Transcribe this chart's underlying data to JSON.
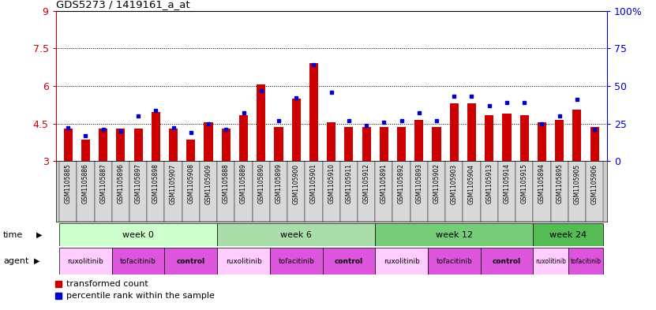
{
  "title": "GDS5273 / 1419161_a_at",
  "samples": [
    "GSM1105885",
    "GSM1105886",
    "GSM1105887",
    "GSM1105896",
    "GSM1105897",
    "GSM1105898",
    "GSM1105907",
    "GSM1105908",
    "GSM1105909",
    "GSM1105888",
    "GSM1105889",
    "GSM1105890",
    "GSM1105899",
    "GSM1105900",
    "GSM1105901",
    "GSM1105910",
    "GSM1105911",
    "GSM1105912",
    "GSM1105891",
    "GSM1105892",
    "GSM1105893",
    "GSM1105902",
    "GSM1105903",
    "GSM1105904",
    "GSM1105913",
    "GSM1105914",
    "GSM1105915",
    "GSM1105894",
    "GSM1105895",
    "GSM1105905",
    "GSM1105906"
  ],
  "red_values": [
    4.3,
    3.85,
    4.3,
    4.3,
    4.3,
    4.95,
    4.3,
    3.85,
    4.55,
    4.3,
    4.85,
    6.05,
    4.35,
    5.5,
    6.9,
    4.55,
    4.35,
    4.35,
    4.35,
    4.35,
    4.65,
    4.35,
    5.3,
    5.3,
    4.85,
    4.9,
    4.85,
    4.55,
    4.65,
    5.05,
    4.35
  ],
  "blue_values": [
    22,
    17,
    21,
    20,
    30,
    34,
    22,
    19,
    25,
    21,
    32,
    47,
    27,
    42,
    64,
    46,
    27,
    24,
    26,
    27,
    32,
    27,
    43,
    43,
    37,
    39,
    39,
    25,
    30,
    41,
    21
  ],
  "y_min": 3,
  "y_max": 9,
  "y_ticks_red": [
    3,
    4.5,
    6,
    7.5,
    9
  ],
  "y_ticks_blue": [
    0,
    25,
    50,
    75,
    100
  ],
  "bar_color": "#cc0000",
  "dot_color": "#0000cc",
  "time_groups": [
    {
      "label": "week 0",
      "start": 0,
      "end": 8
    },
    {
      "label": "week 6",
      "start": 9,
      "end": 17
    },
    {
      "label": "week 12",
      "start": 18,
      "end": 26
    },
    {
      "label": "week 24",
      "start": 27,
      "end": 30
    }
  ],
  "time_colors": [
    "#ccffcc",
    "#aaddaa",
    "#77cc77",
    "#55bb55"
  ],
  "agent_groups": [
    {
      "label": "ruxolitinib",
      "start": 0,
      "end": 2
    },
    {
      "label": "tofacitinib",
      "start": 3,
      "end": 5
    },
    {
      "label": "control",
      "start": 6,
      "end": 8
    },
    {
      "label": "ruxolitinib",
      "start": 9,
      "end": 11
    },
    {
      "label": "tofacitinib",
      "start": 12,
      "end": 14
    },
    {
      "label": "control",
      "start": 15,
      "end": 17
    },
    {
      "label": "ruxolitinib",
      "start": 18,
      "end": 20
    },
    {
      "label": "tofacitinib",
      "start": 21,
      "end": 23
    },
    {
      "label": "control",
      "start": 24,
      "end": 26
    },
    {
      "label": "ruxolitinib",
      "start": 27,
      "end": 28
    },
    {
      "label": "tofacitinib",
      "start": 29,
      "end": 30
    }
  ],
  "agent_colors": {
    "ruxolitinib": "#ffccff",
    "tofacitinib": "#dd55dd",
    "control": "#dd55dd"
  },
  "xtick_bg": "#cccccc",
  "plot_bg": "#ffffff"
}
